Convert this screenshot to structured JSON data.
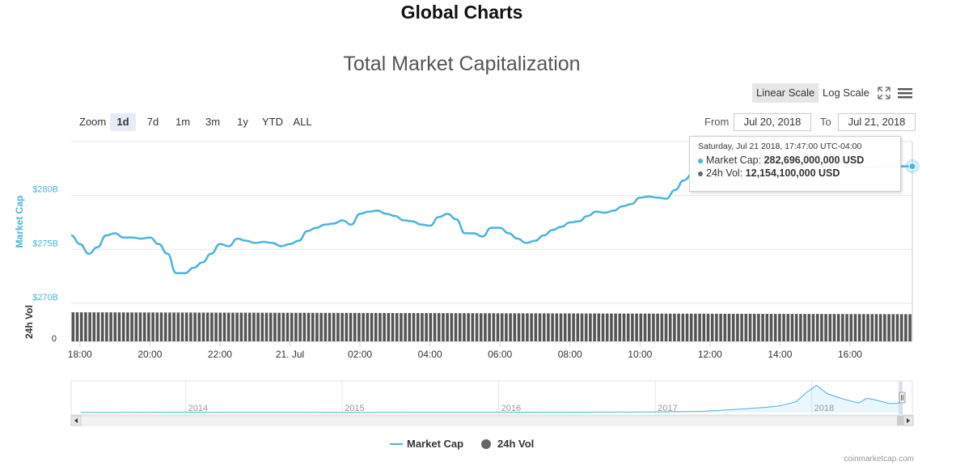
{
  "page": {
    "title": "Global Charts",
    "credit": "coinmarketcap.com"
  },
  "controls": {
    "zoom_label": "Zoom",
    "zoom_buttons": [
      "1d",
      "7d",
      "1m",
      "3m",
      "1y",
      "YTD",
      "ALL"
    ],
    "zoom_active": "1d",
    "from_label": "From",
    "from_value": "Jul 20, 2018",
    "to_label": "To",
    "to_value": "Jul 21, 2018",
    "linear_scale": "Linear Scale",
    "log_scale": "Log Scale",
    "scale_active": "linear"
  },
  "icons": {
    "fullscreen": "fullscreen-icon",
    "menu": "hamburger-menu-icon"
  },
  "colors": {
    "market_cap": "#4ab3df",
    "volume": "#555555",
    "grid": "#e6e6e6",
    "axis_label": "#4ab3df"
  },
  "tooltip": {
    "header": "Saturday, Jul 21 2018, 17:47:00 UTC-04:00",
    "market_cap_label": "Market Cap:",
    "market_cap_value": "282,696,000,000 USD",
    "volume_label": "24h Vol:",
    "volume_value": "12,154,100,000 USD"
  },
  "legend": {
    "market_cap": "Market Cap",
    "volume": "24h Vol"
  },
  "chart_data": {
    "type": "line",
    "title": "Total Market Capitalization",
    "x_ticks": [
      "18:00",
      "20:00",
      "22:00",
      "21. Jul",
      "02:00",
      "04:00",
      "06:00",
      "08:00",
      "10:00",
      "12:00",
      "14:00",
      "16:00"
    ],
    "x_tick_hours": [
      18,
      20,
      22,
      24,
      26,
      28,
      30,
      32,
      34,
      36,
      38,
      40
    ],
    "x_range_hours": [
      17.75,
      41.78
    ],
    "market_cap": {
      "axis_label": "Market Cap",
      "ylim": [
        270,
        285
      ],
      "y_ticks": [
        270,
        275,
        280
      ],
      "y_tick_labels": [
        "$270B",
        "$275B",
        "$280B"
      ],
      "unit": "billion USD",
      "series": {
        "name": "Market Cap",
        "x": [
          17.75,
          18.0,
          18.25,
          18.5,
          18.75,
          19.0,
          19.25,
          19.5,
          19.75,
          20.0,
          20.25,
          20.5,
          20.75,
          21.0,
          21.25,
          21.5,
          21.75,
          22.0,
          22.25,
          22.5,
          22.75,
          23.0,
          23.25,
          23.5,
          23.75,
          24.0,
          24.25,
          24.5,
          24.75,
          25.0,
          25.25,
          25.5,
          25.75,
          26.0,
          26.25,
          26.5,
          26.75,
          27.0,
          27.25,
          27.5,
          27.75,
          28.0,
          28.25,
          28.5,
          28.75,
          29.0,
          29.25,
          29.5,
          29.75,
          30.0,
          30.25,
          30.5,
          30.75,
          31.0,
          31.25,
          31.5,
          31.75,
          32.0,
          32.25,
          32.5,
          32.75,
          33.0,
          33.25,
          33.5,
          33.75,
          34.0,
          34.25,
          34.5,
          34.75,
          35.0,
          35.25,
          35.5,
          35.75,
          36.0,
          36.25,
          36.5,
          36.75,
          37.0,
          37.25,
          37.5,
          37.75,
          38.0,
          38.25,
          38.5,
          38.75,
          39.0,
          39.25,
          39.5,
          39.75,
          40.0,
          40.25,
          40.5,
          40.75,
          41.0,
          41.25,
          41.5,
          41.78
        ],
        "values": [
          276.3,
          275.5,
          274.6,
          275.2,
          276.3,
          276.5,
          276.1,
          276.1,
          276.0,
          276.1,
          275.5,
          274.6,
          272.8,
          272.8,
          273.3,
          273.8,
          274.6,
          275.5,
          275.3,
          276.0,
          275.8,
          275.6,
          275.7,
          275.6,
          275.3,
          275.5,
          275.8,
          276.7,
          277.0,
          277.3,
          277.4,
          277.7,
          277.3,
          278.3,
          278.5,
          278.6,
          278.3,
          278.1,
          277.7,
          277.6,
          277.3,
          277.2,
          278.0,
          278.3,
          277.8,
          276.5,
          276.5,
          276.2,
          277.0,
          277.0,
          276.5,
          276.0,
          275.6,
          275.8,
          276.3,
          276.8,
          277.1,
          277.5,
          277.6,
          278.1,
          278.5,
          278.4,
          278.6,
          279.0,
          279.2,
          279.8,
          279.9,
          279.8,
          279.7,
          280.5,
          281.4,
          282.0,
          282.3,
          282.5,
          282.6,
          282.8,
          282.8,
          282.7,
          282.8,
          283.0,
          283.0,
          283.0,
          282.9,
          282.8,
          282.8,
          282.7,
          282.7,
          282.8,
          282.9,
          282.8,
          282.8,
          282.6,
          282.7,
          282.7,
          282.7,
          282.7,
          282.7
        ]
      }
    },
    "volume": {
      "axis_label": "24h Vol",
      "y_tick_labels": [
        "0"
      ],
      "unit": "billion USD",
      "series": {
        "name": "24h Vol",
        "x_range": [
          17.75,
          41.78
        ],
        "start_value": 13.0,
        "end_value": 12.154,
        "max": 17.0
      }
    },
    "navigator": {
      "year_labels": [
        "2014",
        "2015",
        "2016",
        "2017",
        "2018"
      ],
      "year_positions": [
        2014.0,
        2015.0,
        2016.0,
        2017.0,
        2018.0
      ],
      "x_range": [
        2013.33,
        2018.56
      ],
      "series": {
        "x": [
          2013.33,
          2013.8,
          2014.0,
          2014.3,
          2014.6,
          2015.0,
          2015.5,
          2016.0,
          2016.5,
          2017.0,
          2017.3,
          2017.5,
          2017.7,
          2017.8,
          2017.9,
          2017.97,
          2018.03,
          2018.1,
          2018.2,
          2018.3,
          2018.35,
          2018.4,
          2018.45,
          2018.5,
          2018.56
        ],
        "values": [
          1.5,
          10,
          12,
          7,
          6,
          4,
          5,
          7,
          12,
          18,
          35,
          90,
          150,
          200,
          320,
          600,
          800,
          550,
          400,
          280,
          420,
          380,
          320,
          260,
          282
        ]
      }
    }
  }
}
